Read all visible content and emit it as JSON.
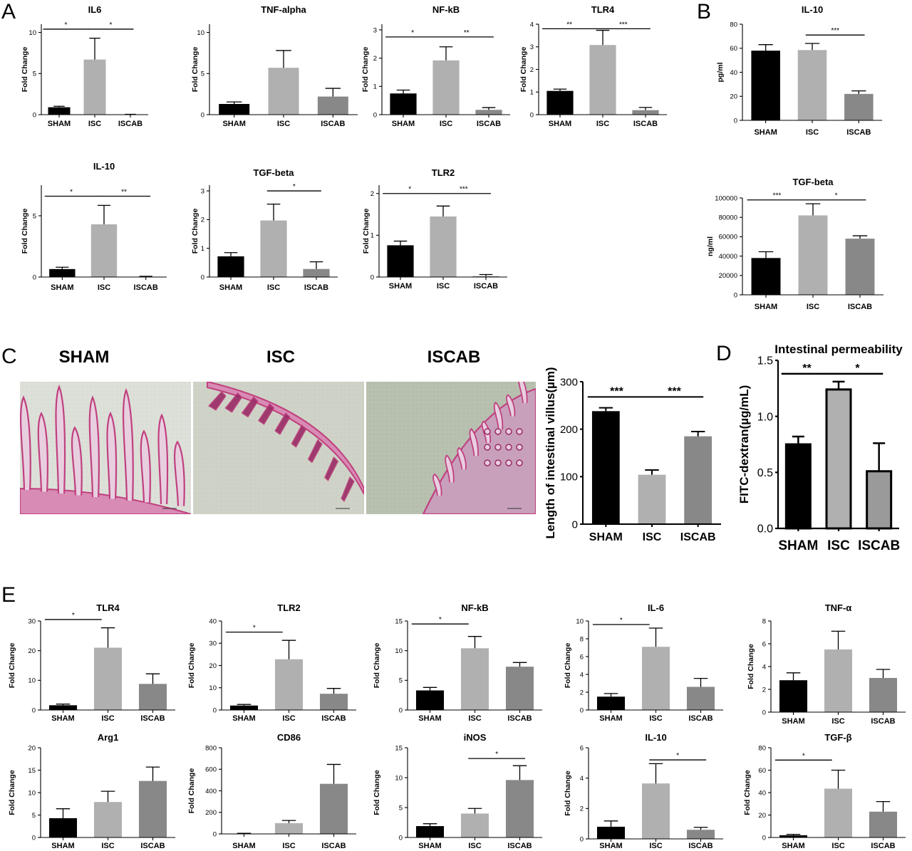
{
  "panel_labels": [
    "A",
    "B",
    "C",
    "D",
    "E"
  ],
  "colors": {
    "sham": "#000000",
    "isc": "#b0b0b0",
    "iscab": "#888888"
  },
  "micrographs": [
    {
      "title": "SHAM",
      "style": "sham"
    },
    {
      "title": "ISC",
      "style": "isc"
    },
    {
      "title": "ISCAB",
      "style": "iscab"
    }
  ],
  "chart_data": [
    {
      "id": "A1",
      "type": "bar",
      "title": "IL6",
      "ylabel": "Fold Change",
      "categories": [
        "SHAM",
        "ISC",
        "ISCAB"
      ],
      "values": [
        0.9,
        6.7,
        0.02
      ],
      "errors": [
        0.12,
        2.6,
        0.02
      ],
      "ylim": [
        0,
        11
      ],
      "ticks": [
        0,
        5,
        10
      ],
      "tick_labels": [
        "0",
        "5",
        "10"
      ],
      "significance": [
        {
          "from": 0,
          "to": 1,
          "label": "*",
          "y": 10.4
        },
        {
          "from": 1,
          "to": 2,
          "label": "*",
          "y": 10.4
        }
      ]
    },
    {
      "id": "A2",
      "type": "bar",
      "title": "TNF-alpha",
      "ylabel": "Fold Change",
      "categories": [
        "SHAM",
        "ISC",
        "ISCAB"
      ],
      "values": [
        1.3,
        5.7,
        2.2
      ],
      "errors": [
        0.25,
        2.1,
        1.0
      ],
      "ylim": [
        0,
        11
      ],
      "ticks": [
        0,
        5,
        10
      ],
      "tick_labels": [
        "0",
        "5",
        "10"
      ],
      "significance": []
    },
    {
      "id": "A3",
      "type": "bar",
      "title": "NF-kB",
      "ylabel": "Fold Change",
      "categories": [
        "SHAM",
        "ISC",
        "ISCAB"
      ],
      "values": [
        0.75,
        1.92,
        0.17
      ],
      "errors": [
        0.12,
        0.48,
        0.08
      ],
      "ylim": [
        0,
        3.2
      ],
      "ticks": [
        0,
        1,
        2,
        3
      ],
      "tick_labels": [
        "0",
        "1",
        "2",
        "3"
      ],
      "significance": [
        {
          "from": 0,
          "to": 1,
          "label": "*",
          "y": 2.75
        },
        {
          "from": 1,
          "to": 2,
          "label": "**",
          "y": 2.75
        }
      ]
    },
    {
      "id": "A4",
      "type": "bar",
      "title": "TLR4",
      "ylabel": "Fold Change",
      "categories": [
        "SHAM",
        "ISC",
        "ISCAB"
      ],
      "values": [
        1.05,
        3.08,
        0.2
      ],
      "errors": [
        0.08,
        0.65,
        0.12
      ],
      "ylim": [
        0,
        4
      ],
      "ticks": [
        0,
        1,
        2,
        3,
        4
      ],
      "tick_labels": [
        "0",
        "1",
        "2",
        "3",
        "4"
      ],
      "significance": [
        {
          "from": 0,
          "to": 1,
          "label": "**",
          "y": 3.8
        },
        {
          "from": 1,
          "to": 2,
          "label": "***",
          "y": 3.8
        }
      ]
    },
    {
      "id": "A5",
      "type": "bar",
      "title": "IL-10",
      "ylabel": "Fold Change",
      "categories": [
        "SHAM",
        "ISC",
        "ISCAB"
      ],
      "values": [
        0.65,
        4.3,
        0.03
      ],
      "errors": [
        0.15,
        1.55,
        0.03
      ],
      "ylim": [
        0,
        7.5
      ],
      "ticks": [
        0,
        5
      ],
      "tick_labels": [
        "0",
        "5"
      ],
      "significance": [
        {
          "from": 0,
          "to": 1,
          "label": "*",
          "y": 6.6
        },
        {
          "from": 1,
          "to": 2,
          "label": "**",
          "y": 6.6
        }
      ]
    },
    {
      "id": "A6",
      "type": "bar",
      "title": "TGF-beta",
      "ylabel": "Fold Change",
      "categories": [
        "SHAM",
        "ISC",
        "ISCAB"
      ],
      "values": [
        0.72,
        1.97,
        0.28
      ],
      "errors": [
        0.13,
        0.57,
        0.25
      ],
      "ylim": [
        0,
        3.2
      ],
      "ticks": [
        0,
        1,
        2,
        3
      ],
      "tick_labels": [
        "0",
        "1",
        "2",
        "3"
      ],
      "significance": [
        {
          "from": 1,
          "to": 2,
          "label": "*",
          "y": 3.0
        }
      ]
    },
    {
      "id": "A7",
      "type": "bar",
      "title": "TLR2",
      "ylabel": "Fold Change",
      "categories": [
        "SHAM",
        "ISC",
        "ISCAB"
      ],
      "values": [
        0.76,
        1.45,
        0.02
      ],
      "errors": [
        0.1,
        0.25,
        0.04
      ],
      "ylim": [
        0,
        2.2
      ],
      "ticks": [
        0,
        1,
        2
      ],
      "tick_labels": [
        "0",
        "1",
        "2"
      ],
      "significance": [
        {
          "from": 0,
          "to": 1,
          "label": "*",
          "y": 2.0
        },
        {
          "from": 1,
          "to": 2,
          "label": "***",
          "y": 2.0
        }
      ]
    },
    {
      "id": "B1",
      "type": "bar",
      "title": "IL-10",
      "ylabel": "pg/ml",
      "categories": [
        "SHAM",
        "ISC",
        "ISCAB"
      ],
      "values": [
        58,
        58.5,
        22
      ],
      "errors": [
        5,
        5.5,
        2.5
      ],
      "ylim": [
        0,
        80
      ],
      "ticks": [
        0,
        20,
        40,
        60,
        80
      ],
      "tick_labels": [
        "0",
        "20",
        "40",
        "60",
        "80"
      ],
      "significance": [
        {
          "from": 1,
          "to": 2,
          "label": "***",
          "y": 71
        }
      ]
    },
    {
      "id": "B2",
      "type": "bar",
      "title": "TGF-beta",
      "ylabel": "ng/ml",
      "categories": [
        "SHAM",
        "ISC",
        "ISCAB"
      ],
      "values": [
        38000,
        82000,
        58000
      ],
      "errors": [
        6500,
        12000,
        3000
      ],
      "ylim": [
        0,
        100000
      ],
      "ticks": [
        0,
        20000,
        40000,
        60000,
        80000,
        100000
      ],
      "tick_labels": [
        "0",
        "20000",
        "40000",
        "60000",
        "80000",
        "100000"
      ],
      "significance": [
        {
          "from": 0,
          "to": 1,
          "label": "***",
          "y": 98000
        },
        {
          "from": 1,
          "to": 2,
          "label": "*",
          "y": 98000
        }
      ]
    },
    {
      "id": "C",
      "type": "bar",
      "title": "",
      "ylabel": "Length of intestinal villus(µm)",
      "categories": [
        "SHAM",
        "ISC",
        "ISCAB"
      ],
      "values": [
        238,
        104,
        185
      ],
      "errors": [
        7,
        10,
        10
      ],
      "ylim": [
        0,
        300
      ],
      "ticks": [
        0,
        100,
        200,
        300
      ],
      "tick_labels": [
        "0",
        "100",
        "200",
        "300"
      ],
      "significance": [
        {
          "from": 0,
          "to": 1,
          "label": "***",
          "y": 268
        },
        {
          "from": 1,
          "to": 2,
          "label": "***",
          "y": 268
        }
      ]
    },
    {
      "id": "D",
      "type": "bar",
      "title": "Intestinal permeability",
      "ylabel": "FITC-dextran(µg/mL)",
      "categories": [
        "SHAM",
        "ISC",
        "ISCAB"
      ],
      "values": [
        0.75,
        1.24,
        0.51
      ],
      "errors": [
        0.07,
        0.07,
        0.25
      ],
      "ylim": [
        0,
        1.5
      ],
      "ticks": [
        0,
        0.5,
        1.0,
        1.5
      ],
      "tick_labels": [
        "0.0",
        "0.5",
        "1.0",
        "1.5"
      ],
      "significance": [
        {
          "from": 0,
          "to": 1,
          "label": "**",
          "y": 1.38
        },
        {
          "from": 1,
          "to": 2,
          "label": "*",
          "y": 1.38
        }
      ]
    },
    {
      "id": "E1",
      "type": "bar",
      "title": "TLR4",
      "ylabel": "Fold Change",
      "categories": [
        "SHAM",
        "ISC",
        "ISCAB"
      ],
      "values": [
        1.6,
        21,
        8.8
      ],
      "errors": [
        0.4,
        6.7,
        3.4
      ],
      "ylim": [
        0,
        30
      ],
      "ticks": [
        0,
        10,
        20,
        30
      ],
      "tick_labels": [
        "0",
        "10",
        "20",
        "30"
      ],
      "significance": [
        {
          "from": 0,
          "to": 1,
          "label": "*",
          "y": 30.5
        }
      ]
    },
    {
      "id": "E2",
      "type": "bar",
      "title": "TLR2",
      "ylabel": "Fold Change",
      "categories": [
        "SHAM",
        "ISC",
        "ISCAB"
      ],
      "values": [
        2,
        22.8,
        7.3
      ],
      "errors": [
        0.5,
        8.5,
        2.4
      ],
      "ylim": [
        0,
        40
      ],
      "ticks": [
        0,
        10,
        20,
        30,
        40
      ],
      "tick_labels": [
        "0",
        "10",
        "20",
        "30",
        "40"
      ],
      "significance": [
        {
          "from": 0,
          "to": 1,
          "label": "*",
          "y": 35
        }
      ]
    },
    {
      "id": "E3",
      "type": "bar",
      "title": "NF-kB",
      "ylabel": "Fold Change",
      "categories": [
        "SHAM",
        "ISC",
        "ISCAB"
      ],
      "values": [
        3.3,
        10.4,
        7.3
      ],
      "errors": [
        0.5,
        2.0,
        0.7
      ],
      "ylim": [
        0,
        15
      ],
      "ticks": [
        0,
        5,
        10,
        15
      ],
      "tick_labels": [
        "0",
        "5",
        "10",
        "15"
      ],
      "significance": [
        {
          "from": 0,
          "to": 1,
          "label": "*",
          "y": 14.5
        }
      ]
    },
    {
      "id": "E4",
      "type": "bar",
      "title": "IL-6",
      "ylabel": "Fold Change",
      "categories": [
        "SHAM",
        "ISC",
        "ISCAB"
      ],
      "values": [
        1.5,
        7.1,
        2.6
      ],
      "errors": [
        0.35,
        2.1,
        0.95
      ],
      "ylim": [
        0,
        10
      ],
      "ticks": [
        0,
        2,
        4,
        6,
        8,
        10
      ],
      "tick_labels": [
        "0",
        "2",
        "4",
        "6",
        "8",
        "10"
      ],
      "significance": [
        {
          "from": 0,
          "to": 1,
          "label": "*",
          "y": 9.6
        }
      ]
    },
    {
      "id": "E5",
      "type": "bar",
      "title": "TNF-α",
      "ylabel": "Fold Change",
      "categories": [
        "SHAM",
        "ISC",
        "ISCAB"
      ],
      "values": [
        2.8,
        5.5,
        3.0
      ],
      "errors": [
        0.65,
        1.6,
        0.75
      ],
      "ylim": [
        0,
        8
      ],
      "ticks": [
        0,
        2,
        4,
        6,
        8
      ],
      "tick_labels": [
        "0",
        "2",
        "4",
        "6",
        "8"
      ],
      "significance": []
    },
    {
      "id": "E6",
      "type": "bar",
      "title": "Arg1",
      "ylabel": "Fold Change",
      "categories": [
        "SHAM",
        "ISC",
        "ISCAB"
      ],
      "values": [
        4.3,
        7.9,
        12.6
      ],
      "errors": [
        2.1,
        2.4,
        3.1
      ],
      "ylim": [
        0,
        20
      ],
      "ticks": [
        0,
        5,
        10,
        15,
        20
      ],
      "tick_labels": [
        "0",
        "5",
        "10",
        "15",
        "20"
      ],
      "significance": []
    },
    {
      "id": "E7",
      "type": "bar",
      "title": "CD86",
      "ylabel": "Fold Change",
      "categories": [
        "SHAM",
        "ISC",
        "ISCAB"
      ],
      "values": [
        3,
        100,
        465
      ],
      "errors": [
        3,
        25,
        180
      ],
      "ylim": [
        0,
        800
      ],
      "ticks": [
        0,
        200,
        400,
        600,
        800
      ],
      "tick_labels": [
        "0",
        "200",
        "400",
        "600",
        "800"
      ],
      "significance": []
    },
    {
      "id": "E8",
      "type": "bar",
      "title": "iNOS",
      "ylabel": "Fold Change",
      "categories": [
        "SHAM",
        "ISC",
        "ISCAB"
      ],
      "values": [
        1.9,
        4.0,
        9.6
      ],
      "errors": [
        0.4,
        0.85,
        2.4
      ],
      "ylim": [
        0,
        15
      ],
      "ticks": [
        0,
        5,
        10,
        15
      ],
      "tick_labels": [
        "0",
        "5",
        "10",
        "15"
      ],
      "significance": [
        {
          "from": 1,
          "to": 2,
          "label": "*",
          "y": 13.2
        }
      ]
    },
    {
      "id": "E9",
      "type": "bar",
      "title": "IL-10",
      "ylabel": "Fold Change",
      "categories": [
        "SHAM",
        "ISC",
        "ISCAB"
      ],
      "values": [
        0.8,
        3.65,
        0.6
      ],
      "errors": [
        0.38,
        1.3,
        0.16
      ],
      "ylim": [
        0,
        6
      ],
      "ticks": [
        0,
        2,
        4,
        6
      ],
      "tick_labels": [
        "0",
        "2",
        "4",
        "6"
      ],
      "significance": [
        {
          "from": 1,
          "to": 2,
          "label": "*",
          "y": 5.2
        }
      ]
    },
    {
      "id": "E10",
      "type": "bar",
      "title": "TGF-β",
      "ylabel": "Fold Change",
      "categories": [
        "SHAM",
        "ISC",
        "ISCAB"
      ],
      "values": [
        2,
        43.5,
        23
      ],
      "errors": [
        0.8,
        16.5,
        9
      ],
      "ylim": [
        0,
        80
      ],
      "ticks": [
        0,
        20,
        40,
        60,
        80
      ],
      "tick_labels": [
        "0",
        "20",
        "40",
        "60",
        "80"
      ],
      "significance": [
        {
          "from": 0,
          "to": 1,
          "label": "*",
          "y": 69
        }
      ]
    }
  ]
}
